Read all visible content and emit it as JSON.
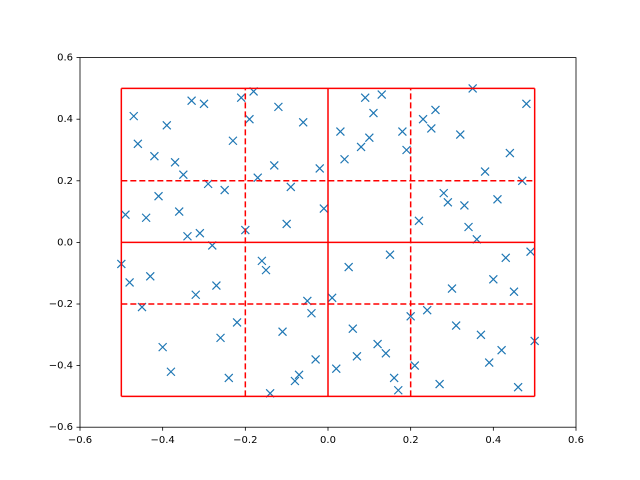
{
  "chart_data": {
    "type": "scatter",
    "marker": "x",
    "color": "#1f77b4",
    "x": [
      -0.47,
      0.12,
      0.33,
      -0.21,
      0.05,
      -0.38,
      0.44,
      -0.09,
      0.27,
      -0.31,
      0.18,
      -0.45,
      0.39,
      -0.02,
      0.22,
      -0.27,
      0.48,
      -0.14,
      0.08,
      -0.41,
      0.31,
      -0.06,
      0.15,
      -0.35,
      0.42,
      -0.18,
      0.01,
      -0.49,
      0.26,
      -0.24,
      0.36,
      -0.11,
      0.1,
      -0.43,
      0.47,
      -0.03,
      0.2,
      -0.33,
      0.29,
      -0.16,
      0.04,
      -0.39,
      0.45,
      -0.26,
      0.13,
      -0.08,
      0.34,
      -0.46,
      0.24,
      -0.19,
      0.4,
      -0.01,
      0.17,
      -0.37,
      0.49,
      -0.12,
      0.07,
      -0.29,
      0.32,
      -0.22,
      0.02,
      -0.44,
      0.38,
      -0.05,
      0.25,
      -0.34,
      0.46,
      -0.15,
      0.11,
      -0.4,
      0.28,
      -0.07,
      0.19,
      -0.48,
      0.35,
      -0.17,
      0.06,
      -0.3,
      0.43,
      -0.23,
      0.14,
      -0.36,
      0.3,
      -0.1,
      0.21,
      -0.42,
      0.41,
      -0.04,
      0.09,
      -0.28,
      0.37,
      -0.13,
      0.23,
      -0.32,
      0.5,
      -0.2,
      0.03,
      -0.5,
      0.16,
      -0.25
    ],
    "y": [
      0.41,
      -0.33,
      0.12,
      0.47,
      -0.08,
      -0.42,
      0.29,
      0.18,
      -0.46,
      0.03,
      0.36,
      -0.21,
      -0.39,
      0.24,
      0.07,
      -0.14,
      0.45,
      -0.49,
      0.31,
      0.15,
      -0.27,
      0.39,
      -0.04,
      0.22,
      -0.35,
      0.49,
      -0.18,
      0.09,
      0.43,
      -0.44,
      0.01,
      -0.29,
      0.34,
      -0.11,
      0.2,
      -0.38,
      -0.24,
      0.46,
      0.13,
      -0.06,
      0.27,
      0.38,
      -0.16,
      -0.31,
      0.48,
      -0.45,
      0.05,
      0.32,
      -0.22,
      0.4,
      -0.12,
      0.11,
      -0.48,
      0.26,
      -0.03,
      0.44,
      -0.37,
      0.19,
      0.35,
      -0.26,
      -0.41,
      0.08,
      0.23,
      -0.19,
      0.37,
      0.02,
      -0.47,
      -0.09,
      0.42,
      -0.34,
      0.16,
      -0.43,
      0.3,
      -0.13,
      0.5,
      0.21,
      -0.28,
      0.45,
      -0.05,
      0.33,
      -0.36,
      0.1,
      -0.15,
      0.06,
      -0.4,
      0.28,
      0.14,
      -0.23,
      0.47,
      -0.01,
      -0.3,
      0.25,
      0.4,
      -0.17,
      -0.32,
      0.04,
      0.36,
      -0.07,
      -0.44,
      0.17
    ],
    "xlim": [
      -0.6,
      0.6
    ],
    "ylim": [
      -0.6,
      0.6
    ],
    "xticks": [
      {
        "value": -0.6,
        "label": "−0.6"
      },
      {
        "value": -0.4,
        "label": "−0.4"
      },
      {
        "value": -0.2,
        "label": "−0.2"
      },
      {
        "value": 0,
        "label": "0.0"
      },
      {
        "value": 0.2,
        "label": "0.2"
      },
      {
        "value": 0.4,
        "label": "0.4"
      },
      {
        "value": 0.6,
        "label": "0.6"
      }
    ],
    "yticks": [
      {
        "value": -0.6,
        "label": "−0.6"
      },
      {
        "value": -0.4,
        "label": "−0.4"
      },
      {
        "value": -0.2,
        "label": "−0.2"
      },
      {
        "value": 0,
        "label": "0.0"
      },
      {
        "value": 0.2,
        "label": "0.2"
      },
      {
        "value": 0.4,
        "label": "0.4"
      },
      {
        "value": 0.6,
        "label": "0.6"
      }
    ],
    "grid_lines": {
      "color": "#ff0000",
      "extent": [
        -0.5,
        0.5
      ],
      "solid": {
        "x": [
          -0.5,
          0,
          0.5
        ],
        "y": [
          -0.5,
          0,
          0.5
        ]
      },
      "dashed": {
        "x": [
          -0.2,
          0.2
        ],
        "y": [
          -0.2,
          0.2
        ]
      }
    }
  }
}
